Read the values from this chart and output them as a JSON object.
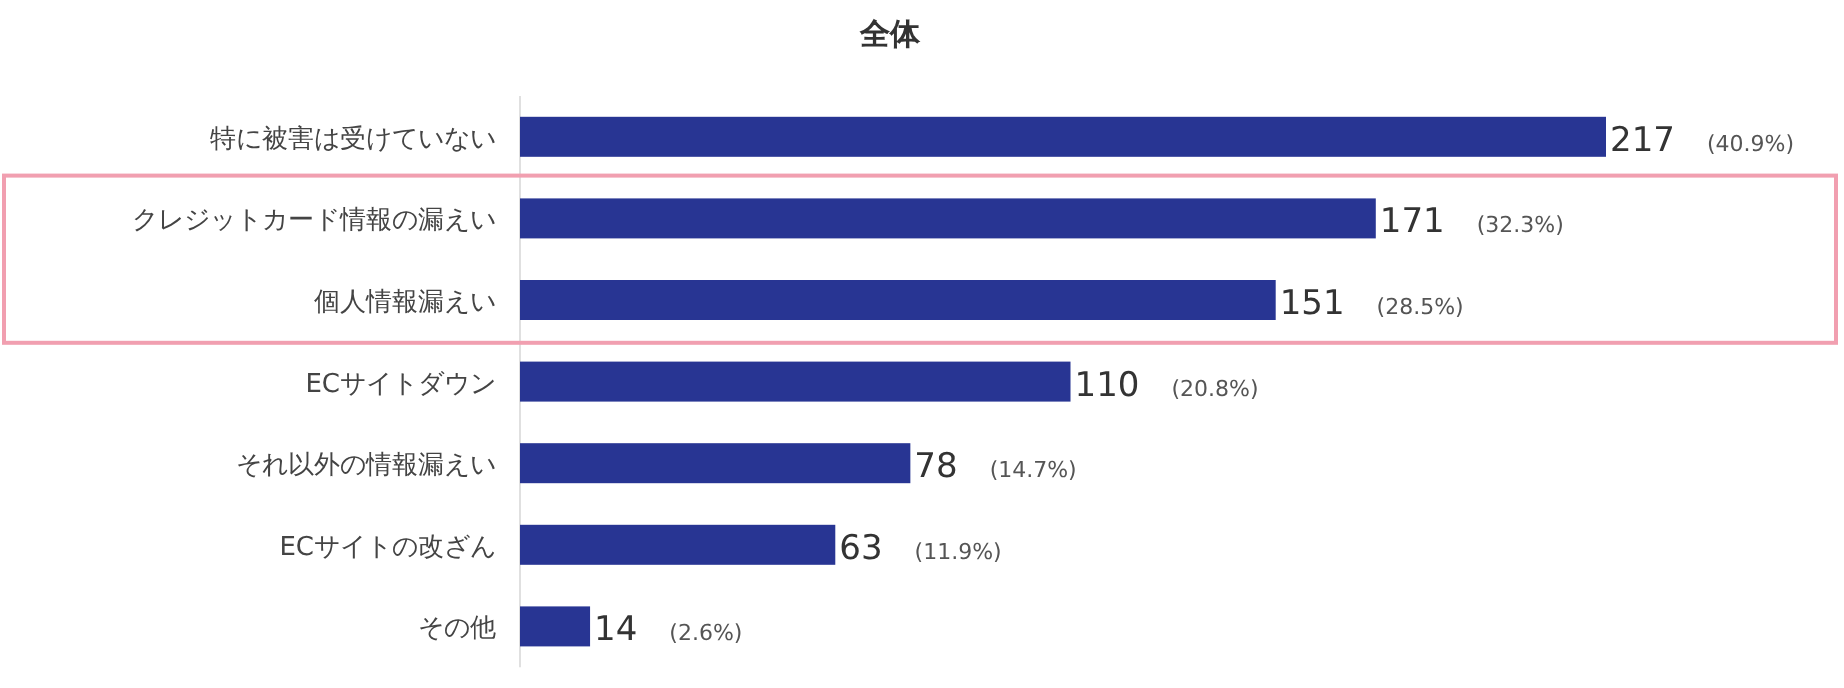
{
  "chart_data": {
    "type": "bar",
    "orientation": "horizontal",
    "title": "全体",
    "categories": [
      "特に被害は受けていない",
      "クレジットカード情報の漏えい",
      "個人情報漏えい",
      "ECサイトダウン",
      "それ以外の情報漏えい",
      "ECサイトの改ざん",
      "その他"
    ],
    "values": [
      217,
      171,
      151,
      110,
      78,
      63,
      14
    ],
    "color": "#283593",
    "value_labels": [
      "217 (40.9%)",
      "171 (32.3%)",
      "151 (28.5%)",
      "110 (20.8%)",
      "78 (14.7%)",
      "63 (11.9%)",
      "14 (2.6%)"
    ]
  }
}
